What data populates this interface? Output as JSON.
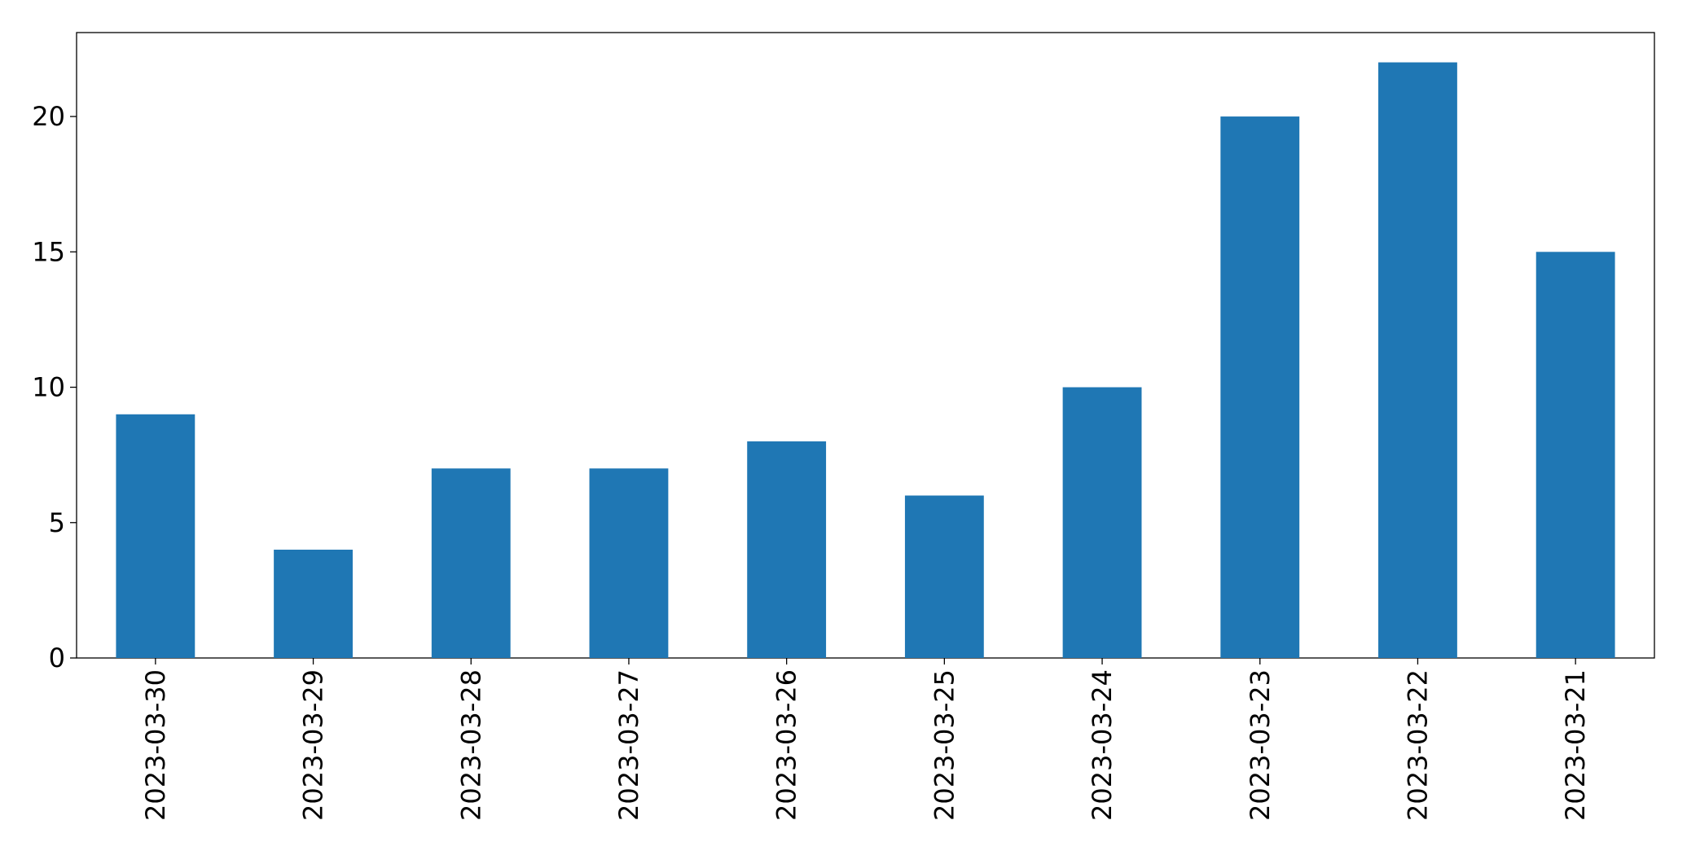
{
  "chart_data": {
    "type": "bar",
    "categories": [
      "2023-03-30",
      "2023-03-29",
      "2023-03-28",
      "2023-03-27",
      "2023-03-26",
      "2023-03-25",
      "2023-03-24",
      "2023-03-23",
      "2023-03-22",
      "2023-03-21"
    ],
    "values": [
      9,
      4,
      7,
      7,
      8,
      6,
      10,
      20,
      22,
      15
    ],
    "color": "#1f77b4",
    "ylim": [
      0,
      23.1
    ],
    "yticks": [
      0,
      5,
      10,
      15,
      20
    ],
    "grid": false
  }
}
